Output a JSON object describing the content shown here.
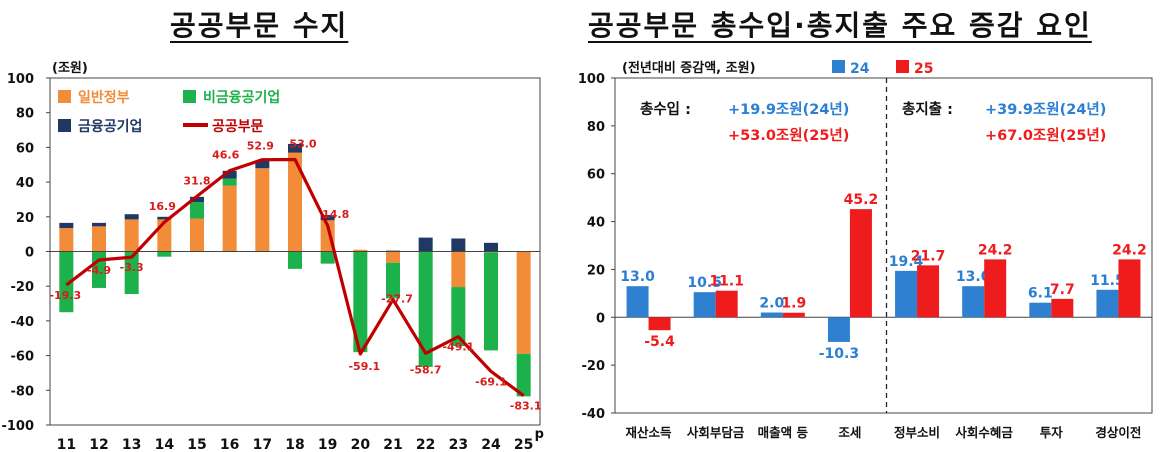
{
  "left_chart": {
    "title": "공공부문 수지",
    "unit_label": "(조원)",
    "legend": {
      "general_gov": "일반정부",
      "nonfin_public": "비금융공기업",
      "fin_public": "금융공기업",
      "public_sector": "공공부문"
    },
    "superscript_last": "p",
    "colors": {
      "general_gov": "#f28c38",
      "nonfin_public": "#1db14b",
      "fin_public": "#1f3864",
      "public_sector": "#c00000",
      "label": "#d81b1b"
    }
  },
  "right_chart": {
    "title": "공공부문 총수입·총지출 주요 증감 요인",
    "unit_label": "(전년대비 증감액, 조원)",
    "legend": {
      "s24": "24",
      "s25": "25"
    },
    "annotation_revenue": {
      "label": "총수입 :",
      "line1": "+19.9조원(24년)",
      "line2": "+53.0조원(25년)"
    },
    "annotation_expend": {
      "label": "총지출 :",
      "line1": "+39.9조원(24년)",
      "line2": "+67.0조원(25년)"
    },
    "colors": {
      "s24": "#2f80d0",
      "s25": "#ee1c1c",
      "text24": "#2a7fd4",
      "text25": "#ee1c1c"
    }
  },
  "chart_data": [
    {
      "type": "bar",
      "title": "공공부문 수지",
      "ylabel": "(조원)",
      "ylim": [
        -100,
        100
      ],
      "yticks": [
        -100,
        -80,
        -60,
        -40,
        -20,
        0,
        20,
        40,
        60,
        80,
        100
      ],
      "categories": [
        "11",
        "12",
        "13",
        "14",
        "15",
        "16",
        "17",
        "18",
        "19",
        "20",
        "21",
        "22",
        "23",
        "24",
        "25"
      ],
      "stacked": true,
      "series": [
        {
          "name": "일반정부",
          "kind": "bar",
          "values": [
            13.5,
            14.5,
            18.5,
            18.5,
            19,
            38,
            48,
            57,
            18,
            1,
            -6.5,
            0,
            -20.5,
            -0.5,
            -59
          ]
        },
        {
          "name": "비금융공기업",
          "kind": "bar",
          "values": [
            -35,
            -21,
            -24.5,
            -3,
            9.5,
            4,
            0,
            -10,
            -7,
            -58,
            -20.5,
            -66.5,
            -34,
            -56.5,
            -24.5
          ]
        },
        {
          "name": "금융공기업",
          "kind": "bar",
          "values": [
            3,
            2,
            3,
            1.5,
            3,
            4.5,
            4.5,
            5,
            3,
            0,
            0.5,
            8,
            7.5,
            5,
            0
          ]
        },
        {
          "name": "공공부문",
          "kind": "line",
          "values": [
            -19.3,
            -4.9,
            -3.3,
            16.9,
            31.8,
            46.6,
            52.9,
            53.0,
            14.8,
            -59.1,
            -27.7,
            -58.7,
            -49.1,
            -69.1,
            -83.1
          ]
        }
      ]
    },
    {
      "type": "bar",
      "title": "공공부문 총수입·총지출 주요 증감 요인",
      "ylabel": "(전년대비 증감액, 조원)",
      "ylim": [
        -40,
        100
      ],
      "yticks": [
        -40,
        -20,
        0,
        20,
        40,
        60,
        80,
        100
      ],
      "categories": [
        "재산소득",
        "사회부담금",
        "매출액 등",
        "조세",
        "정부소비",
        "사회수혜금",
        "투자",
        "경상이전"
      ],
      "series": [
        {
          "name": "24",
          "values": [
            13.0,
            10.5,
            2.0,
            -10.3,
            19.4,
            13.0,
            6.1,
            11.5
          ]
        },
        {
          "name": "25",
          "values": [
            -5.4,
            11.1,
            1.9,
            45.2,
            21.7,
            24.2,
            7.7,
            24.2
          ]
        }
      ],
      "data_labels_24": [
        "13.0",
        "10.5",
        "2.0",
        "-10.3",
        "19.4",
        "13.0",
        "6.1",
        "11.5"
      ],
      "data_labels_25": [
        "-5.4",
        "11.1",
        "1.9",
        "45.2",
        "21.7",
        "24.2",
        "7.7",
        "24.2"
      ]
    }
  ]
}
